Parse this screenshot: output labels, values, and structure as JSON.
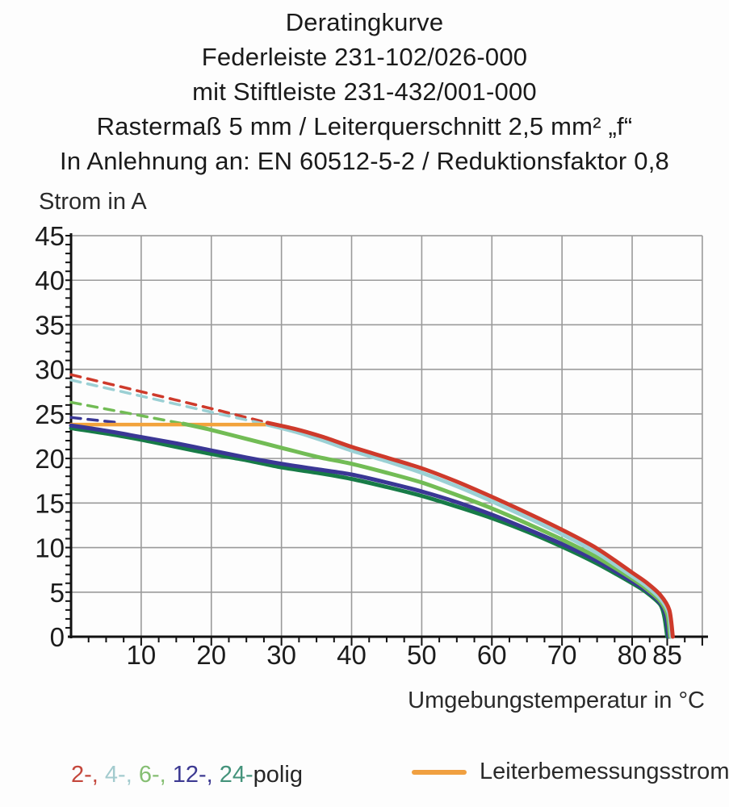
{
  "title": {
    "lines": [
      "Deratingkurve",
      "Federleiste 231-102/026-000",
      "mit Stiftleiste 231-432/001-000",
      "Rastermaß 5 mm / Leiterquerschnitt 2,5 mm² „f“",
      "In Anlehnung an: EN 60512-5-2 / Reduktionsfaktor 0,8"
    ]
  },
  "chart_data": {
    "type": "line",
    "title": "Deratingkurve",
    "ylabel": "Strom in A",
    "xlabel": "Umgebungstemperatur in °C",
    "xlim": [
      0,
      90
    ],
    "ylim": [
      0,
      45
    ],
    "grid": true,
    "grid_color": "#9a9a9a",
    "axis_color": "#111111",
    "x_gridline_step": 10,
    "y_gridline_step": 5,
    "x_minor_tick_step": 2.5,
    "y_minor_tick_step": 1,
    "x_tick_labels": [
      10,
      20,
      30,
      40,
      50,
      60,
      70,
      80,
      85
    ],
    "y_tick_labels": [
      0,
      5,
      10,
      15,
      20,
      25,
      30,
      35,
      40,
      45
    ],
    "series": [
      {
        "name": "2-polig-extrapolation-dashed",
        "color": "#ce3a2b",
        "width": 3.5,
        "dash": true,
        "points": [
          [
            0,
            29.4
          ],
          [
            10,
            27.5
          ],
          [
            20,
            25.6
          ],
          [
            28,
            24.0
          ]
        ]
      },
      {
        "name": "4-polig-extrapolation-dashed",
        "color": "#9bd0d4",
        "width": 3.5,
        "dash": true,
        "points": [
          [
            0,
            28.8
          ],
          [
            10,
            27.0
          ],
          [
            20,
            25.2
          ],
          [
            28,
            23.8
          ]
        ]
      },
      {
        "name": "6-polig-extrapolation-dashed",
        "color": "#72bc55",
        "width": 3.5,
        "dash": true,
        "points": [
          [
            0,
            26.3
          ],
          [
            8,
            25.1
          ],
          [
            16,
            23.9
          ]
        ]
      },
      {
        "name": "12-polig-extrapolation-dashed",
        "color": "#3a3795",
        "width": 3.5,
        "dash": true,
        "points": [
          [
            0,
            24.6
          ],
          [
            7,
            24.0
          ]
        ]
      },
      {
        "name": "Leiterbemessungsstrom",
        "color": "#f2a33c",
        "width": 4.5,
        "dash": false,
        "points": [
          [
            0,
            23.8
          ],
          [
            29,
            23.8
          ]
        ]
      },
      {
        "name": "24-polig",
        "color": "#177b47",
        "width": 5,
        "dash": false,
        "points": [
          [
            0,
            23.4
          ],
          [
            5,
            22.8
          ],
          [
            10,
            22.1
          ],
          [
            15,
            21.3
          ],
          [
            20,
            20.5
          ],
          [
            25,
            19.8
          ],
          [
            30,
            19.0
          ],
          [
            35,
            18.4
          ],
          [
            40,
            17.7
          ],
          [
            45,
            16.8
          ],
          [
            50,
            15.8
          ],
          [
            55,
            14.6
          ],
          [
            60,
            13.3
          ],
          [
            65,
            11.8
          ],
          [
            70,
            10.1
          ],
          [
            75,
            8.2
          ],
          [
            80,
            6.0
          ],
          [
            82,
            5.0
          ],
          [
            84,
            3.6
          ],
          [
            84.6,
            2.2
          ],
          [
            85.0,
            0
          ]
        ]
      },
      {
        "name": "12-polig",
        "color": "#3a3795",
        "width": 5,
        "dash": false,
        "points": [
          [
            0,
            23.7
          ],
          [
            5,
            23.1
          ],
          [
            10,
            22.4
          ],
          [
            15,
            21.7
          ],
          [
            20,
            20.9
          ],
          [
            25,
            20.1
          ],
          [
            30,
            19.4
          ],
          [
            35,
            18.8
          ],
          [
            40,
            18.2
          ],
          [
            45,
            17.3
          ],
          [
            50,
            16.3
          ],
          [
            55,
            15.1
          ],
          [
            60,
            13.7
          ],
          [
            65,
            12.1
          ],
          [
            70,
            10.4
          ],
          [
            75,
            8.5
          ],
          [
            80,
            6.2
          ],
          [
            82,
            5.2
          ],
          [
            84,
            3.8
          ],
          [
            84.8,
            2.4
          ],
          [
            85.2,
            0
          ]
        ]
      },
      {
        "name": "6-polig",
        "color": "#72bc55",
        "width": 5,
        "dash": false,
        "points": [
          [
            16,
            23.9
          ],
          [
            20,
            23.2
          ],
          [
            25,
            22.2
          ],
          [
            30,
            21.2
          ],
          [
            35,
            20.2
          ],
          [
            40,
            19.4
          ],
          [
            45,
            18.4
          ],
          [
            50,
            17.3
          ],
          [
            55,
            15.9
          ],
          [
            60,
            14.4
          ],
          [
            65,
            12.7
          ],
          [
            70,
            10.9
          ],
          [
            75,
            8.9
          ],
          [
            80,
            6.5
          ],
          [
            82,
            5.4
          ],
          [
            84,
            4.0
          ],
          [
            85.0,
            2.5
          ],
          [
            85.4,
            0
          ]
        ]
      },
      {
        "name": "4-polig",
        "color": "#9bd0d4",
        "width": 5,
        "dash": false,
        "points": [
          [
            28,
            23.8
          ],
          [
            32,
            23.0
          ],
          [
            36,
            22.0
          ],
          [
            40,
            20.9
          ],
          [
            45,
            19.7
          ],
          [
            50,
            18.4
          ],
          [
            55,
            16.9
          ],
          [
            60,
            15.2
          ],
          [
            65,
            13.4
          ],
          [
            70,
            11.5
          ],
          [
            75,
            9.4
          ],
          [
            80,
            6.8
          ],
          [
            82,
            5.7
          ],
          [
            84,
            4.3
          ],
          [
            85.2,
            2.7
          ],
          [
            85.6,
            0
          ]
        ]
      },
      {
        "name": "2-polig",
        "color": "#ce3a2b",
        "width": 5,
        "dash": false,
        "points": [
          [
            28,
            24.0
          ],
          [
            32,
            23.3
          ],
          [
            36,
            22.4
          ],
          [
            40,
            21.3
          ],
          [
            45,
            20.1
          ],
          [
            50,
            18.9
          ],
          [
            55,
            17.4
          ],
          [
            60,
            15.7
          ],
          [
            65,
            13.9
          ],
          [
            70,
            12.0
          ],
          [
            75,
            9.9
          ],
          [
            80,
            7.2
          ],
          [
            82,
            6.1
          ],
          [
            84,
            4.7
          ],
          [
            85.3,
            3.0
          ],
          [
            85.8,
            0
          ]
        ]
      }
    ]
  },
  "legend": {
    "poles": [
      {
        "label": "2-, ",
        "color": "#c4473c"
      },
      {
        "label": "4-, ",
        "color": "#a3cbce"
      },
      {
        "label": "6-, ",
        "color": "#85be72"
      },
      {
        "label": "12-, ",
        "color": "#3d3a92"
      },
      {
        "label": "24-",
        "color": "#44937b"
      },
      {
        "label": "polig",
        "color": "#262626"
      }
    ],
    "rated": {
      "label": "Leiterbemessungsstrom",
      "color": "#f0a041"
    }
  }
}
